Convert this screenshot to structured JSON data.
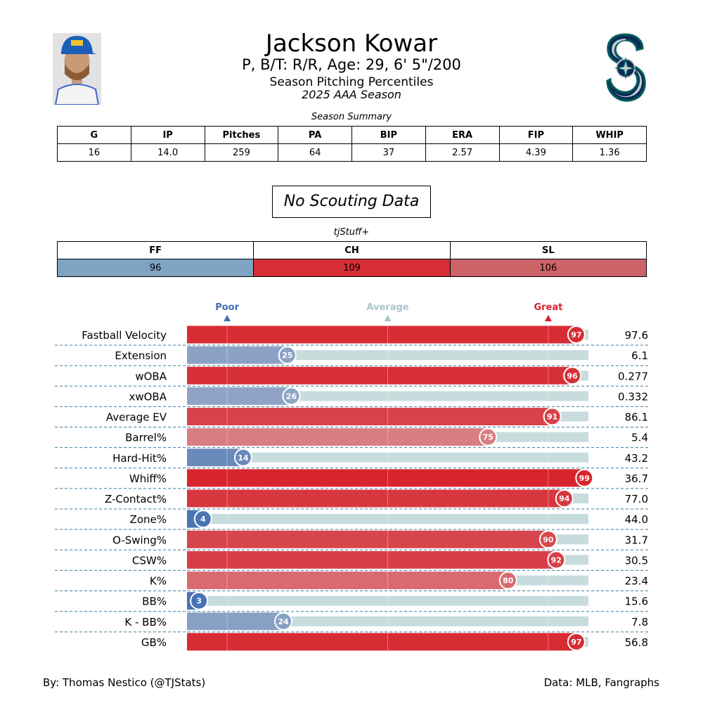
{
  "header": {
    "name": "Jackson Kowar",
    "bio": "P, B/T: R/R, Age: 29, 6' 5\"/200",
    "title": "Season Pitching Percentiles",
    "season": "2025 AAA Season"
  },
  "summary": {
    "title": "Season Summary",
    "columns": [
      "G",
      "IP",
      "Pitches",
      "PA",
      "BIP",
      "ERA",
      "FIP",
      "WHIP"
    ],
    "values": [
      "16",
      "14.0",
      "259",
      "64",
      "37",
      "2.57",
      "4.39",
      "1.36"
    ]
  },
  "scouting": {
    "text": "No Scouting Data"
  },
  "tjstuff": {
    "title": "tjStuff+",
    "columns": [
      "FF",
      "CH",
      "SL"
    ],
    "values": [
      "96",
      "109",
      "106"
    ],
    "colors": [
      "#7fa3c3",
      "#d62d36",
      "#cc6367"
    ]
  },
  "chart_data": {
    "type": "bar",
    "orientation": "horizontal",
    "scale_labels": [
      "Poor",
      "Average",
      "Great"
    ],
    "scale_positions": [
      10,
      50,
      90
    ],
    "xlim": [
      0,
      100
    ],
    "categories": [
      "Fastball Velocity",
      "Extension",
      "wOBA",
      "xwOBA",
      "Average EV",
      "Barrel%",
      "Hard-Hit%",
      "Whiff%",
      "Z-Contact%",
      "Zone%",
      "O-Swing%",
      "CSW%",
      "K%",
      "BB%",
      "K - BB%",
      "GB%"
    ],
    "percentiles": [
      97,
      25,
      96,
      26,
      91,
      75,
      14,
      99,
      94,
      4,
      90,
      92,
      80,
      3,
      24,
      97
    ],
    "stat_values": [
      "97.6",
      "6.1",
      "0.277",
      "0.332",
      "86.1",
      "5.4",
      "43.2",
      "36.7",
      "77.0",
      "44.0",
      "31.7",
      "30.5",
      "23.4",
      "15.6",
      "7.8",
      "56.8"
    ],
    "colors": {
      "poor": "#3f6cb1",
      "great": "#d8212a",
      "average_label": "#a9c5cc",
      "background_bar": "#c7dcdc"
    }
  },
  "footer": {
    "left": "By: Thomas Nestico (@TJStats)",
    "right": "Data: MLB, Fangraphs"
  }
}
